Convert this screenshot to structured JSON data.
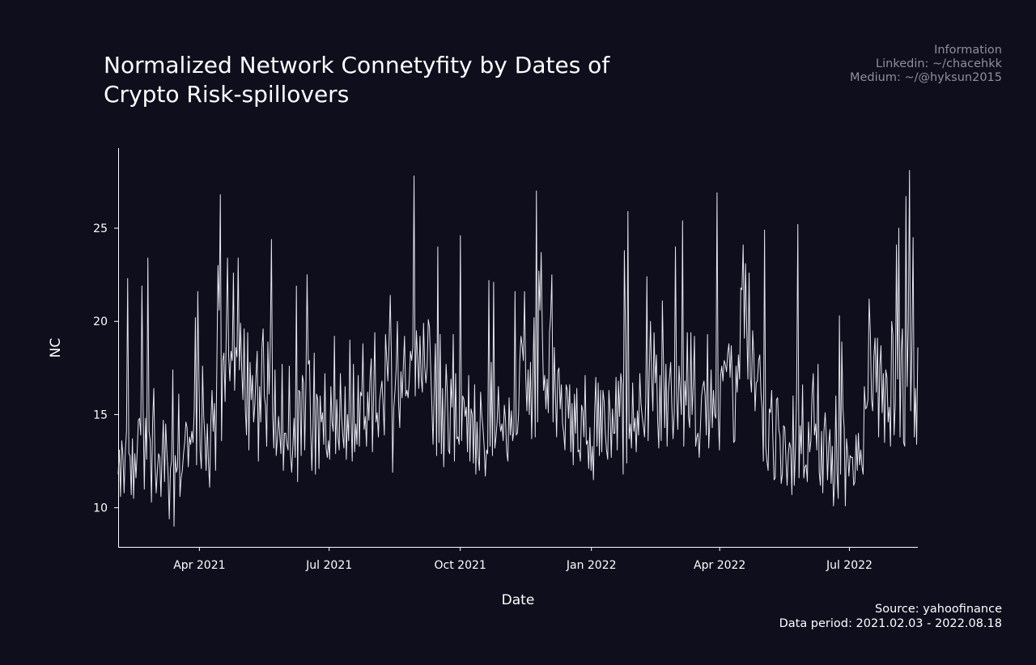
{
  "info": {
    "heading": "Information",
    "linkedin": "Linkedin: ~/chacehkk",
    "medium": "Medium: ~/@hyksun2015"
  },
  "source": {
    "line1": "Source: yahoofinance",
    "line2": "Data period: 2021.02.03 - 2022.08.18"
  },
  "colors": {
    "background": "#0e0e1d",
    "line": "#e6e6ee",
    "axis": "#ffffff",
    "info_text": "#8f8f99"
  },
  "chart_data": {
    "type": "line",
    "title": "Normalized Network Connetyfity by Dates of Crypto Risk-spillovers",
    "xlabel": "Date",
    "ylabel": "NC",
    "x_start": "2021-02-03",
    "x_end": "2022-08-18",
    "xlim": [
      "2021-02-03",
      "2022-08-18"
    ],
    "ylim": [
      7.9,
      29.3
    ],
    "x_ticks": [
      {
        "date": "2021-04-01",
        "label": "Apr 2021"
      },
      {
        "date": "2021-07-01",
        "label": "Jul 2021"
      },
      {
        "date": "2021-10-01",
        "label": "Oct 2021"
      },
      {
        "date": "2022-01-01",
        "label": "Jan 2022"
      },
      {
        "date": "2022-04-01",
        "label": "Apr 2022"
      },
      {
        "date": "2022-07-01",
        "label": "Jul 2022"
      }
    ],
    "y_ticks": [
      10,
      15,
      20,
      25
    ],
    "grid": false,
    "legend": "none",
    "series": [
      {
        "values": [
          11.8,
          13.1,
          10.6,
          13.6,
          12.8,
          10.8,
          13.0,
          14.1,
          22.3,
          12.9,
          12.8,
          10.7,
          13.7,
          10.5,
          12.9,
          11.6,
          13.0,
          14.7,
          14.8,
          13.9,
          21.9,
          15.2,
          11.0,
          14.8,
          12.6,
          23.4,
          14.1,
          13.6,
          10.3,
          14.6,
          16.4,
          12.4,
          10.8,
          12.0,
          12.9,
          12.7,
          10.6,
          12.9,
          14.7,
          11.4,
          14.5,
          13.0,
          11.8,
          9.4,
          12.1,
          12.5,
          17.4,
          9.0,
          12.8,
          11.9,
          12.2,
          16.1,
          10.6,
          11.6,
          12.0,
          12.9,
          13.5,
          14.6,
          14.3,
          12.2,
          13.8,
          13.4,
          14.1,
          13.5,
          15.2,
          20.2,
          12.3,
          21.6,
          16.9,
          13.0,
          12.1,
          17.6,
          14.9,
          13.8,
          12.0,
          14.5,
          12.4,
          11.1,
          14.6,
          16.3,
          14.1,
          15.6,
          12.0,
          17.3,
          23.0,
          20.6,
          26.8,
          13.6,
          17.9,
          18.3,
          15.7,
          19.4,
          23.4,
          18.1,
          16.8,
          18.4,
          17.9,
          22.6,
          16.3,
          18.6,
          18.1,
          23.4,
          17.4,
          19.9,
          17.4,
          15.8,
          19.6,
          15.3,
          13.9,
          19.4,
          13.1,
          17.8,
          15.8,
          17.1,
          14.6,
          15.5,
          17.1,
          18.4,
          12.5,
          16.5,
          14.6,
          18.6,
          19.6,
          16.0,
          15.5,
          13.3,
          18.9,
          16.1,
          18.7,
          24.4,
          15.0,
          13.2,
          17.4,
          12.8,
          13.7,
          14.9,
          13.9,
          12.9,
          17.7,
          12.0,
          14.0,
          14.0,
          13.4,
          13.1,
          17.6,
          12.9,
          11.9,
          13.2,
          14.8,
          12.7,
          21.9,
          11.4,
          16.3,
          16.2,
          12.8,
          17.1,
          16.7,
          13.1,
          16.5,
          22.5,
          17.7,
          17.9,
          14.3,
          12.0,
          14.3,
          18.3,
          11.8,
          16.1,
          15.8,
          12.1,
          16.0,
          14.6,
          15.1,
          13.4,
          17.2,
          13.2,
          12.7,
          13.6,
          12.6,
          16.5,
          14.6,
          14.1,
          19.2,
          12.9,
          15.8,
          13.8,
          13.1,
          17.2,
          14.9,
          13.9,
          13.2,
          16.5,
          12.6,
          15.0,
          13.6,
          19.0,
          14.8,
          12.5,
          17.7,
          13.0,
          14.5,
          13.4,
          17.1,
          13.3,
          16.2,
          16.0,
          18.8,
          14.2,
          14.9,
          13.3,
          16.2,
          14.7,
          17.0,
          18.0,
          13.0,
          16.1,
          19.4,
          14.6,
          15.1,
          13.8,
          15.7,
          16.3,
          16.8,
          15.5,
          13.9,
          19.3,
          18.0,
          16.8,
          18.9,
          21.4,
          17.9,
          11.9,
          15.4,
          16.3,
          17.5,
          20.0,
          15.6,
          14.3,
          17.3,
          15.9,
          17.6,
          19.2,
          16.0,
          16.3,
          15.9,
          16.8,
          18.4,
          17.9,
          18.6,
          27.8,
          16.0,
          19.5,
          18.1,
          16.4,
          19.2,
          17.0,
          16.2,
          19.9,
          17.6,
          16.7,
          17.5,
          20.1,
          19.7,
          17.5,
          15.5,
          13.4,
          16.2,
          18.8,
          12.8,
          24.0,
          13.5,
          19.3,
          12.9,
          16.4,
          12.2,
          15.0,
          17.7,
          16.2,
          13.1,
          12.9,
          16.9,
          15.4,
          19.3,
          12.5,
          17.2,
          13.7,
          13.8,
          13.4,
          24.6,
          13.6,
          16.0,
          15.8,
          14.9,
          15.4,
          13.0,
          17.1,
          12.5,
          15.3,
          15.0,
          12.4,
          16.6,
          11.8,
          14.6,
          12.7,
          12.0,
          16.2,
          15.0,
          14.3,
          13.3,
          11.7,
          13.1,
          12.9,
          22.2,
          13.3,
          17.8,
          12.8,
          22.1,
          13.2,
          13.8,
          14.7,
          16.5,
          14.6,
          14.1,
          14.5,
          13.6,
          15.5,
          14.7,
          13.0,
          12.5,
          15.9,
          13.9,
          15.2,
          13.6,
          14.1,
          21.6,
          13.9,
          14.0,
          15.0,
          17.9,
          19.2,
          18.7,
          17.9,
          21.6,
          17.0,
          15.2,
          17.4,
          15.0,
          17.8,
          13.7,
          16.8,
          20.2,
          13.8,
          27.0,
          14.6,
          22.7,
          20.6,
          23.7,
          19.3,
          16.3,
          17.1,
          15.3,
          16.9,
          15.1,
          19.4,
          20.3,
          22.5,
          14.6,
          18.6,
          16.1,
          13.8,
          17.3,
          17.5,
          15.3,
          16.6,
          14.5,
          14.0,
          13.1,
          16.6,
          16.3,
          14.8,
          16.6,
          13.0,
          15.6,
          12.3,
          16.1,
          14.0,
          16.4,
          13.0,
          13.1,
          12.5,
          15.5,
          15.2,
          13.8,
          17.1,
          13.4,
          13.6,
          12.1,
          14.3,
          12.0,
          13.3,
          11.5,
          15.1,
          17.0,
          13.3,
          16.7,
          12.8,
          16.3,
          13.0,
          16.3,
          15.7,
          14.0,
          13.1,
          12.6,
          16.3,
          15.1,
          12.7,
          15.3,
          14.0,
          14.0,
          17.0,
          13.1,
          16.8,
          14.9,
          17.2,
          16.6,
          11.8,
          23.8,
          19.4,
          12.4,
          25.9,
          13.7,
          14.5,
          13.2,
          16.7,
          14.1,
          14.8,
          13.0,
          15.2,
          13.9,
          17.2,
          15.6,
          14.9,
          14.4,
          13.8,
          15.7,
          22.4,
          13.6,
          17.3,
          20.0,
          17.0,
          15.2,
          19.4,
          16.7,
          18.2,
          14.7,
          13.2,
          17.1,
          13.6,
          21.1,
          17.6,
          14.3,
          17.7,
          13.3,
          16.2,
          17.0,
          17.8,
          15.4,
          13.7,
          15.1,
          24.0,
          16.1,
          14.2,
          17.6,
          16.3,
          15.0,
          25.4,
          13.3,
          16.8,
          15.5,
          19.4,
          14.9,
          14.3,
          19.4,
          15.0,
          16.6,
          19.2,
          13.3,
          13.8,
          14.0,
          12.7,
          14.3,
          16.0,
          16.5,
          16.8,
          16.0,
          13.9,
          19.3,
          13.2,
          14.7,
          17.4,
          14.3,
          16.3,
          15.0,
          14.8,
          26.9,
          15.0,
          13.1,
          17.1,
          17.6,
          16.8,
          17.9,
          17.7,
          17.3,
          18.3,
          18.8,
          17.0,
          18.7,
          16.6,
          13.5,
          13.6,
          17.6,
          16.2,
          18.2,
          16.9,
          21.8,
          21.7,
          24.1,
          19.1,
          23.1,
          19.6,
          16.9,
          22.6,
          17.0,
          16.2,
          19.5,
          18.2,
          15.2,
          16.7,
          16.8,
          17.9,
          18.2,
          16.1,
          15.3,
          12.5,
          24.9,
          13.3,
          12.5,
          12.0,
          15.3,
          15.1,
          16.3,
          13.7,
          11.5,
          11.6,
          15.8,
          15.9,
          14.2,
          13.8,
          11.3,
          11.8,
          14.4,
          14.3,
          12.6,
          11.2,
          12.9,
          13.5,
          13.2,
          10.7,
          16.0,
          11.2,
          13.1,
          16.2,
          25.2,
          11.6,
          14.4,
          12.9,
          16.6,
          11.6,
          12.2,
          12.3,
          11.4,
          14.6,
          13.0,
          13.6,
          16.1,
          17.2,
          13.9,
          14.5,
          13.1,
          17.7,
          11.9,
          11.2,
          14.1,
          10.8,
          14.1,
          15.1,
          13.8,
          11.5,
          13.4,
          14.2,
          11.3,
          13.3,
          10.1,
          11.4,
          16.0,
          11.9,
          10.5,
          20.3,
          11.8,
          18.9,
          15.3,
          14.3,
          10.1,
          13.7,
          12.9,
          11.7,
          12.8,
          12.7,
          12.7,
          11.2,
          11.4,
          13.9,
          12.0,
          14.0,
          12.3,
          13.1,
          12.2,
          11.8,
          16.5,
          15.3,
          15.4,
          15.8,
          21.2,
          19.5,
          15.8,
          15.2,
          18.1,
          19.1,
          16.2,
          19.1,
          13.8,
          17.6,
          18.7,
          15.1,
          17.2,
          13.5,
          17.4,
          17.0,
          14.6,
          15.4,
          13.3,
          20.0,
          19.3,
          13.9,
          15.6,
          24.1,
          16.9,
          25.0,
          13.8,
          18.3,
          19.6,
          13.5,
          13.3,
          26.7,
          16.5,
          19.8,
          28.1,
          15.2,
          18.6,
          24.5,
          13.8,
          16.4,
          13.4,
          18.6
        ]
      }
    ]
  }
}
